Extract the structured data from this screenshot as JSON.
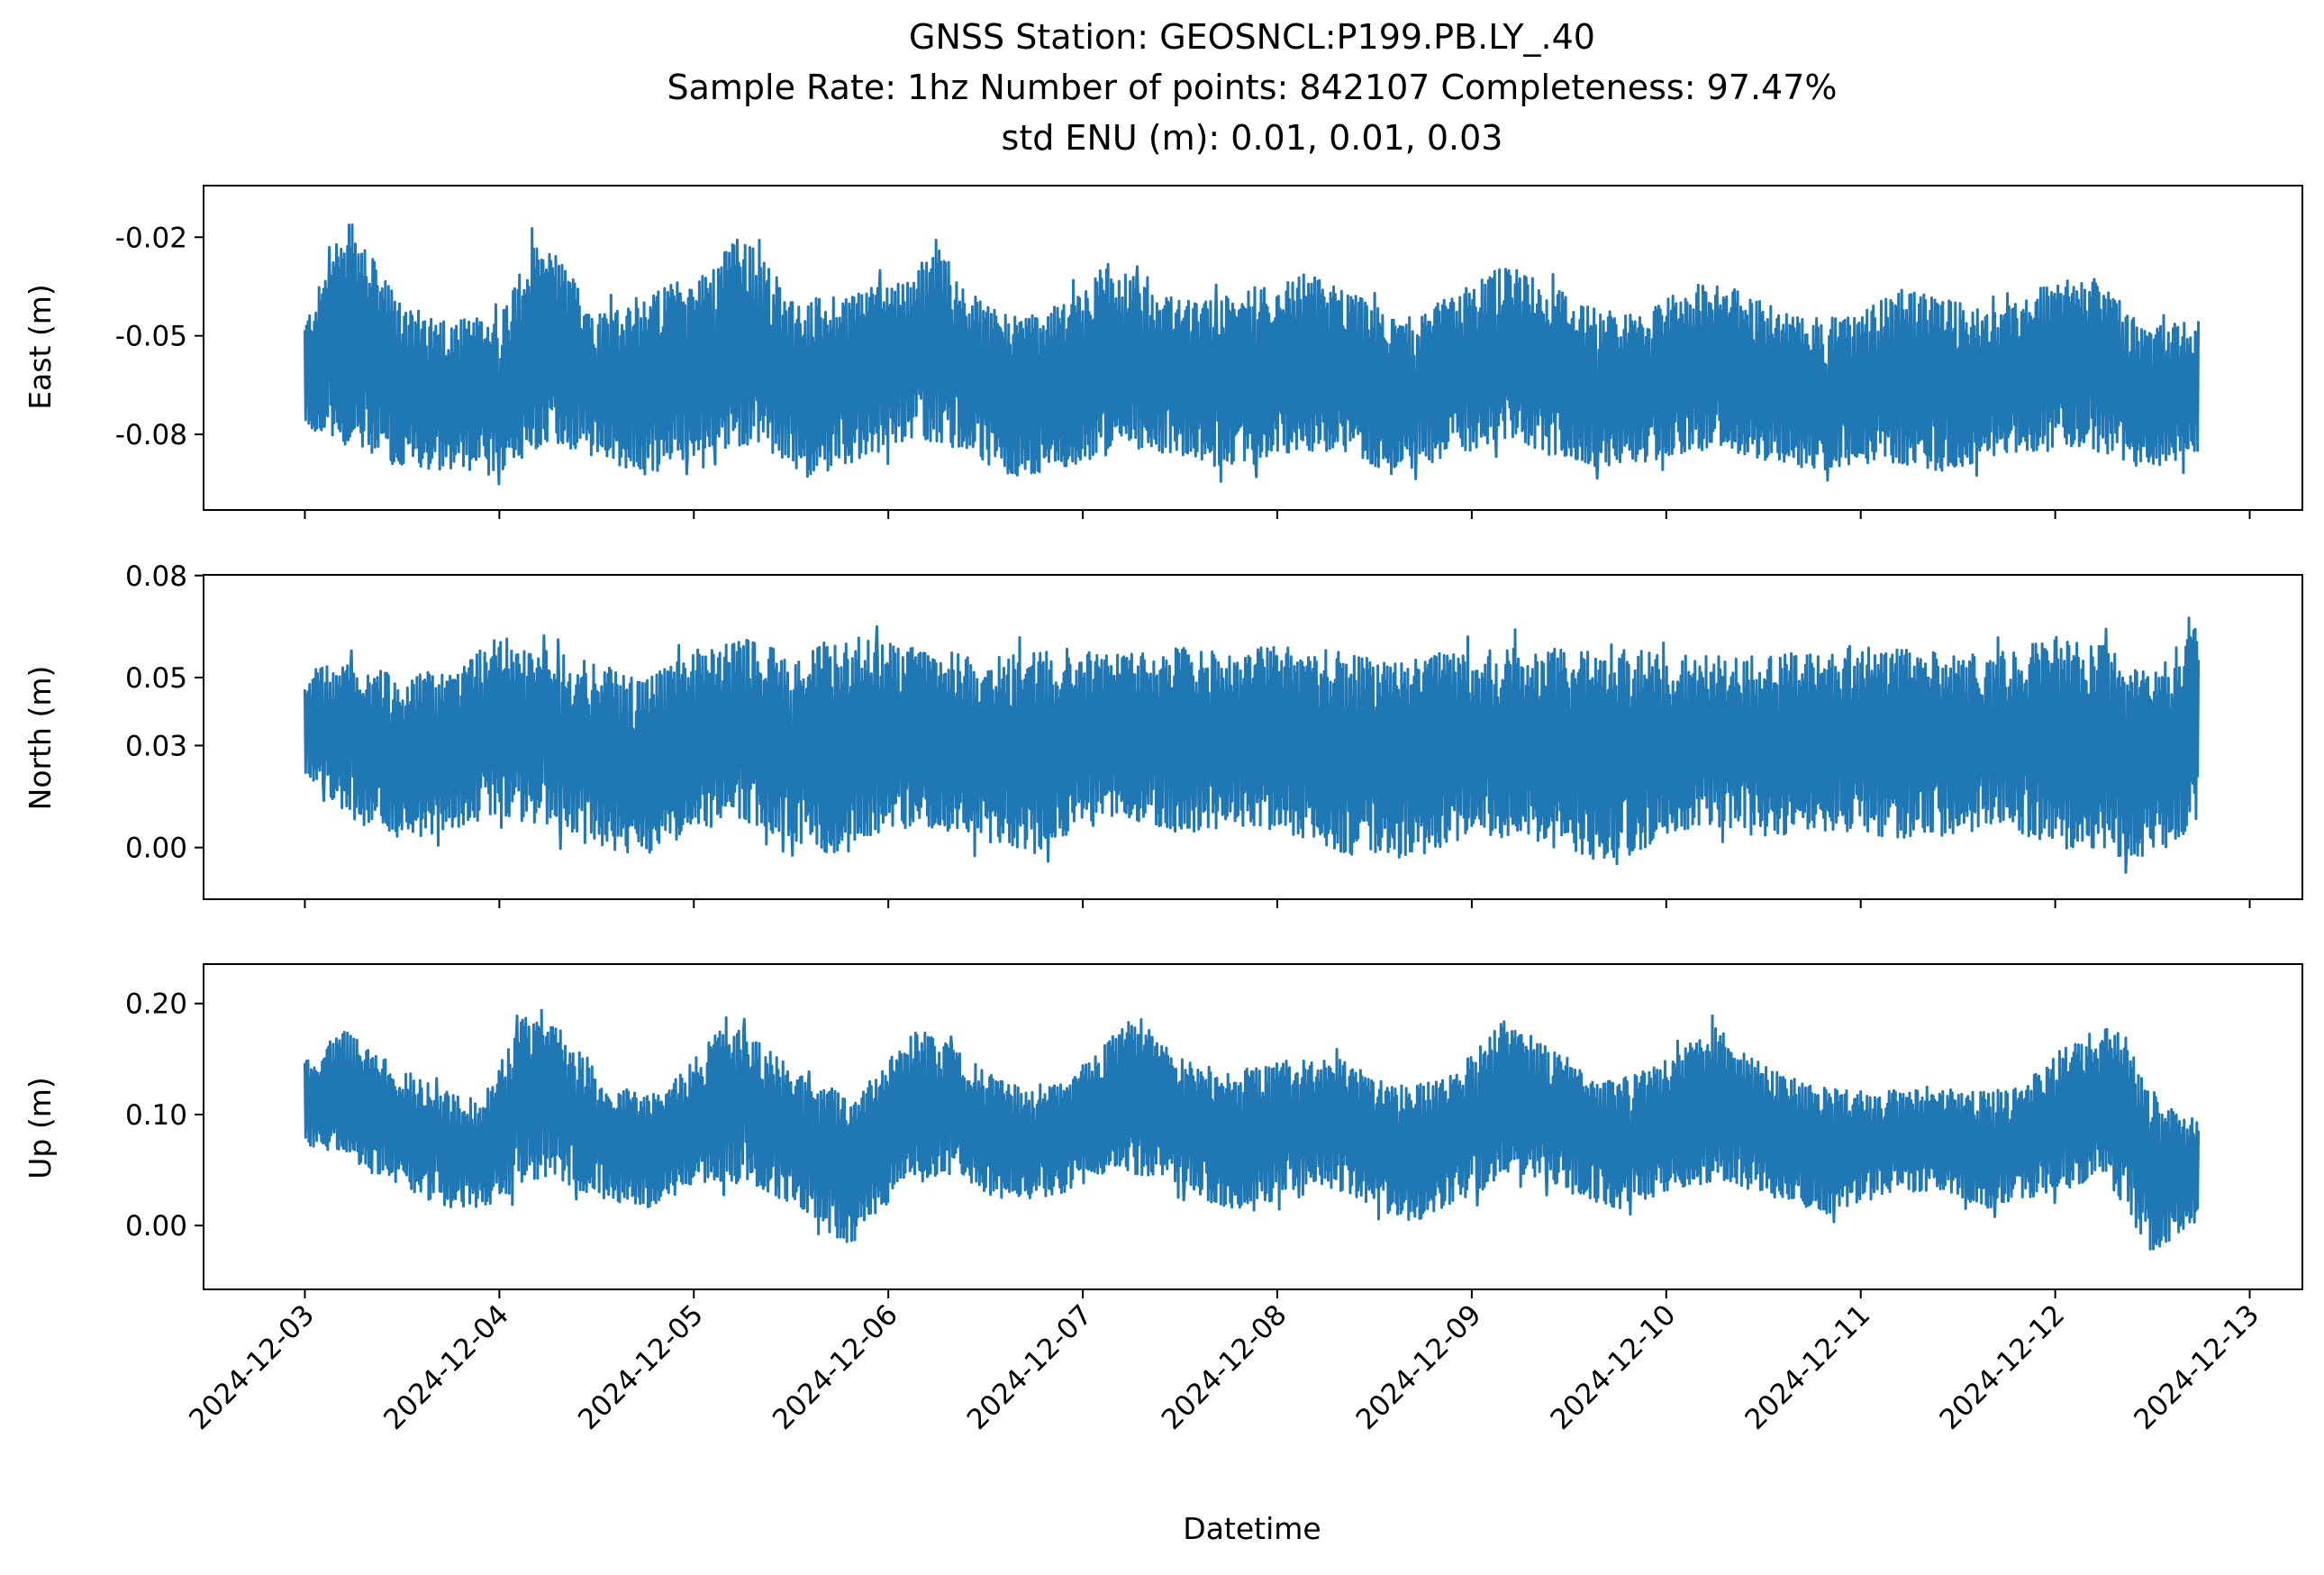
{
  "figure": {
    "title_lines": [
      "GNSS Station: GEOSNCL:P199.PB.LY_.40",
      "Sample Rate: 1hz   Number of points: 842107    Completeness:  97.47%",
      "std ENU (m):  0.01, 0.01, 0.03"
    ],
    "xlabel": "Datetime"
  },
  "chart_data": [
    {
      "type": "line",
      "name": "east",
      "ylabel": "East (m)",
      "color": "#1f77b4",
      "xlim": [
        "2024-12-02T11:30",
        "2024-12-13T06:30"
      ],
      "ylim": [
        -0.103,
        -0.0043
      ],
      "yticks": [
        -0.08,
        -0.05,
        -0.02
      ],
      "ytick_labels": [
        "-0.08",
        "-0.05",
        "-0.02"
      ],
      "x_data_range": [
        "2024-12-03T00:00",
        "2024-12-12T17:40"
      ],
      "y_data_range": [
        -0.098,
        -0.01
      ],
      "envelope_upper": [
        [
          "2024-12-03T00:00",
          -0.046
        ],
        [
          "2024-12-03T04:00",
          -0.021
        ],
        [
          "2024-12-03T07:00",
          -0.021
        ],
        [
          "2024-12-03T12:00",
          -0.041
        ],
        [
          "2024-12-03T18:00",
          -0.045
        ],
        [
          "2024-12-04T00:00",
          -0.044
        ],
        [
          "2024-12-04T04:00",
          -0.022
        ],
        [
          "2024-12-04T07:00",
          -0.025
        ],
        [
          "2024-12-04T12:00",
          -0.043
        ],
        [
          "2024-12-04T18:00",
          -0.037
        ],
        [
          "2024-12-05T02:00",
          -0.03
        ],
        [
          "2024-12-05T05:00",
          -0.02
        ],
        [
          "2024-12-05T07:00",
          -0.022
        ],
        [
          "2024-12-05T13:00",
          -0.04
        ],
        [
          "2024-12-05T19:00",
          -0.036
        ],
        [
          "2024-12-06T03:00",
          -0.032
        ],
        [
          "2024-12-06T06:00",
          -0.02
        ],
        [
          "2024-12-06T09:00",
          -0.035
        ],
        [
          "2024-12-06T15:00",
          -0.044
        ],
        [
          "2024-12-06T21:00",
          -0.041
        ],
        [
          "2024-12-07T04:00",
          -0.026
        ],
        [
          "2024-12-07T08:00",
          -0.036
        ],
        [
          "2024-12-07T14:00",
          -0.04
        ],
        [
          "2024-12-07T20:00",
          -0.036
        ],
        [
          "2024-12-08T03:00",
          -0.031
        ],
        [
          "2024-12-08T08:00",
          -0.034
        ],
        [
          "2024-12-08T14:00",
          -0.044
        ],
        [
          "2024-12-08T20:00",
          -0.04
        ],
        [
          "2024-12-09T04:00",
          -0.028
        ],
        [
          "2024-12-09T09:00",
          -0.034
        ],
        [
          "2024-12-09T15:00",
          -0.041
        ],
        [
          "2024-12-09T21:00",
          -0.044
        ],
        [
          "2024-12-10T05:00",
          -0.031
        ],
        [
          "2024-12-10T10:00",
          -0.038
        ],
        [
          "2024-12-10T16:00",
          -0.043
        ],
        [
          "2024-12-10T22:00",
          -0.045
        ],
        [
          "2024-12-11T05:00",
          -0.036
        ],
        [
          "2024-12-11T11:00",
          -0.038
        ],
        [
          "2024-12-11T17:00",
          -0.042
        ],
        [
          "2024-12-12T00:00",
          -0.033
        ],
        [
          "2024-12-12T06:00",
          -0.032
        ],
        [
          "2024-12-12T11:00",
          -0.048
        ],
        [
          "2024-12-12T17:40",
          -0.045
        ]
      ],
      "envelope_lower": [
        [
          "2024-12-03T00:00",
          -0.078
        ],
        [
          "2024-12-03T06:00",
          -0.085
        ],
        [
          "2024-12-03T12:00",
          -0.09
        ],
        [
          "2024-12-03T18:00",
          -0.091
        ],
        [
          "2024-12-03T23:00",
          -0.093
        ],
        [
          "2024-12-04T06:00",
          -0.082
        ],
        [
          "2024-12-04T12:00",
          -0.088
        ],
        [
          "2024-12-04T18:00",
          -0.093
        ],
        [
          "2024-12-05T02:00",
          -0.085
        ],
        [
          "2024-12-05T08:00",
          -0.083
        ],
        [
          "2024-12-05T14:00",
          -0.093
        ],
        [
          "2024-12-05T20:00",
          -0.089
        ],
        [
          "2024-12-06T04:00",
          -0.081
        ],
        [
          "2024-12-06T10:00",
          -0.086
        ],
        [
          "2024-12-06T16:00",
          -0.094
        ],
        [
          "2024-12-06T22:00",
          -0.091
        ],
        [
          "2024-12-07T06:00",
          -0.084
        ],
        [
          "2024-12-07T12:00",
          -0.087
        ],
        [
          "2024-12-07T18:00",
          -0.091
        ],
        [
          "2024-12-08T02:00",
          -0.086
        ],
        [
          "2024-12-08T08:00",
          -0.085
        ],
        [
          "2024-12-08T14:00",
          -0.092
        ],
        [
          "2024-12-08T20:00",
          -0.088
        ],
        [
          "2024-12-09T04:00",
          -0.082
        ],
        [
          "2024-12-09T10:00",
          -0.087
        ],
        [
          "2024-12-09T16:00",
          -0.09
        ],
        [
          "2024-12-09T22:00",
          -0.088
        ],
        [
          "2024-12-10T06:00",
          -0.084
        ],
        [
          "2024-12-10T12:00",
          -0.088
        ],
        [
          "2024-12-10T18:00",
          -0.091
        ],
        [
          "2024-12-11T02:00",
          -0.089
        ],
        [
          "2024-12-11T08:00",
          -0.092
        ],
        [
          "2024-12-11T14:00",
          -0.089
        ],
        [
          "2024-12-11T20:00",
          -0.086
        ],
        [
          "2024-12-12T04:00",
          -0.084
        ],
        [
          "2024-12-12T10:00",
          -0.09
        ],
        [
          "2024-12-12T17:40",
          -0.088
        ]
      ]
    },
    {
      "type": "line",
      "name": "north",
      "ylabel": "North (m)",
      "color": "#1f77b4",
      "xlim": [
        "2024-12-02T11:30",
        "2024-12-13T06:30"
      ],
      "ylim": [
        -0.0152,
        0.0802
      ],
      "yticks": [
        0.0,
        0.03,
        0.05,
        0.08
      ],
      "ytick_labels": [
        "0.00",
        "0.03",
        "0.05",
        "0.08"
      ],
      "x_data_range": [
        "2024-12-03T00:00",
        "2024-12-12T17:40"
      ],
      "y_data_range": [
        -0.0116,
        0.0765
      ],
      "envelope_upper": [
        [
          "2024-12-03T00:00",
          0.052
        ],
        [
          "2024-12-03T05:00",
          0.055
        ],
        [
          "2024-12-03T12:00",
          0.05
        ],
        [
          "2024-12-03T18:00",
          0.053
        ],
        [
          "2024-12-04T00:00",
          0.062
        ],
        [
          "2024-12-04T06:00",
          0.058
        ],
        [
          "2024-12-04T12:00",
          0.054
        ],
        [
          "2024-12-04T18:00",
          0.05
        ],
        [
          "2024-12-05T00:00",
          0.058
        ],
        [
          "2024-12-05T06:00",
          0.062
        ],
        [
          "2024-12-05T12:00",
          0.057
        ],
        [
          "2024-12-05T18:00",
          0.063
        ],
        [
          "2024-12-06T00:00",
          0.06
        ],
        [
          "2024-12-06T06:00",
          0.058
        ],
        [
          "2024-12-06T12:00",
          0.056
        ],
        [
          "2024-12-06T18:00",
          0.058
        ],
        [
          "2024-12-07T00:00",
          0.059
        ],
        [
          "2024-12-07T06:00",
          0.057
        ],
        [
          "2024-12-07T12:00",
          0.059
        ],
        [
          "2024-12-07T18:00",
          0.057
        ],
        [
          "2024-12-08T00:00",
          0.06
        ],
        [
          "2024-12-08T06:00",
          0.058
        ],
        [
          "2024-12-08T12:00",
          0.056
        ],
        [
          "2024-12-08T18:00",
          0.057
        ],
        [
          "2024-12-09T00:00",
          0.058
        ],
        [
          "2024-12-09T06:00",
          0.06
        ],
        [
          "2024-12-09T12:00",
          0.058
        ],
        [
          "2024-12-09T18:00",
          0.06
        ],
        [
          "2024-12-10T00:00",
          0.056
        ],
        [
          "2024-12-10T06:00",
          0.057
        ],
        [
          "2024-12-10T12:00",
          0.056
        ],
        [
          "2024-12-10T18:00",
          0.058
        ],
        [
          "2024-12-11T00:00",
          0.06
        ],
        [
          "2024-12-11T06:00",
          0.058
        ],
        [
          "2024-12-11T12:00",
          0.057
        ],
        [
          "2024-12-11T18:00",
          0.058
        ],
        [
          "2024-12-12T00:00",
          0.062
        ],
        [
          "2024-12-12T06:00",
          0.06
        ],
        [
          "2024-12-12T12:00",
          0.052
        ],
        [
          "2024-12-12T17:40",
          0.066
        ]
      ],
      "envelope_lower": [
        [
          "2024-12-03T00:00",
          0.022
        ],
        [
          "2024-12-03T06:00",
          0.008
        ],
        [
          "2024-12-03T12:00",
          0.002
        ],
        [
          "2024-12-03T18:00",
          0.005
        ],
        [
          "2024-12-04T00:00",
          0.01
        ],
        [
          "2024-12-04T06:00",
          0.005
        ],
        [
          "2024-12-04T12:00",
          0.0
        ],
        [
          "2024-12-04T18:00",
          -0.003
        ],
        [
          "2024-12-05T00:00",
          0.005
        ],
        [
          "2024-12-05T06:00",
          0.008
        ],
        [
          "2024-12-05T12:00",
          0.002
        ],
        [
          "2024-12-05T18:00",
          -0.004
        ],
        [
          "2024-12-06T00:00",
          0.006
        ],
        [
          "2024-12-06T06:00",
          0.004
        ],
        [
          "2024-12-06T12:00",
          0.001
        ],
        [
          "2024-12-06T18:00",
          -0.002
        ],
        [
          "2024-12-07T00:00",
          0.006
        ],
        [
          "2024-12-07T06:00",
          0.008
        ],
        [
          "2024-12-07T12:00",
          0.004
        ],
        [
          "2024-12-07T18:00",
          0.006
        ],
        [
          "2024-12-08T00:00",
          0.005
        ],
        [
          "2024-12-08T06:00",
          0.0
        ],
        [
          "2024-12-08T12:00",
          -0.004
        ],
        [
          "2024-12-08T18:00",
          -0.002
        ],
        [
          "2024-12-09T00:00",
          0.004
        ],
        [
          "2024-12-09T06:00",
          0.002
        ],
        [
          "2024-12-09T12:00",
          -0.002
        ],
        [
          "2024-12-09T18:00",
          -0.005
        ],
        [
          "2024-12-10T00:00",
          0.004
        ],
        [
          "2024-12-10T06:00",
          0.006
        ],
        [
          "2024-12-10T12:00",
          0.003
        ],
        [
          "2024-12-10T18:00",
          0.005
        ],
        [
          "2024-12-11T00:00",
          0.004
        ],
        [
          "2024-12-11T06:00",
          0.002
        ],
        [
          "2024-12-11T12:00",
          0.004
        ],
        [
          "2024-12-11T18:00",
          0.006
        ],
        [
          "2024-12-12T00:00",
          0.0
        ],
        [
          "2024-12-12T06:00",
          -0.002
        ],
        [
          "2024-12-12T12:00",
          -0.004
        ],
        [
          "2024-12-12T17:40",
          0.006
        ]
      ]
    },
    {
      "type": "line",
      "name": "up",
      "ylabel": "Up (m)",
      "color": "#1f77b4",
      "xlim": [
        "2024-12-02T11:30",
        "2024-12-13T06:30"
      ],
      "ylim": [
        -0.0575,
        0.2355
      ],
      "yticks": [
        0.0,
        0.1,
        0.2
      ],
      "ytick_labels": [
        "0.00",
        "0.10",
        "0.20"
      ],
      "x_data_range": [
        "2024-12-03T00:00",
        "2024-12-12T17:40"
      ],
      "y_data_range": [
        -0.044,
        0.225
      ],
      "envelope_upper": [
        [
          "2024-12-03T00:00",
          0.15
        ],
        [
          "2024-12-03T05:00",
          0.175
        ],
        [
          "2024-12-03T10:00",
          0.15
        ],
        [
          "2024-12-03T16:00",
          0.125
        ],
        [
          "2024-12-03T22:00",
          0.115
        ],
        [
          "2024-12-04T03:00",
          0.19
        ],
        [
          "2024-12-04T08:00",
          0.175
        ],
        [
          "2024-12-04T14:00",
          0.125
        ],
        [
          "2024-12-04T20:00",
          0.118
        ],
        [
          "2024-12-05T04:00",
          0.188
        ],
        [
          "2024-12-05T09:00",
          0.16
        ],
        [
          "2024-12-05T15:00",
          0.125
        ],
        [
          "2024-12-05T21:00",
          0.128
        ],
        [
          "2024-12-06T04:00",
          0.18
        ],
        [
          "2024-12-06T10:00",
          0.15
        ],
        [
          "2024-12-06T16:00",
          0.125
        ],
        [
          "2024-12-06T22:00",
          0.13
        ],
        [
          "2024-12-07T06:00",
          0.195
        ],
        [
          "2024-12-07T12:00",
          0.15
        ],
        [
          "2024-12-07T18:00",
          0.138
        ],
        [
          "2024-12-08T02:00",
          0.15
        ],
        [
          "2024-12-08T08:00",
          0.15
        ],
        [
          "2024-12-08T14:00",
          0.125
        ],
        [
          "2024-12-08T20:00",
          0.13
        ],
        [
          "2024-12-09T04:00",
          0.185
        ],
        [
          "2024-12-09T10:00",
          0.16
        ],
        [
          "2024-12-09T16:00",
          0.13
        ],
        [
          "2024-12-09T22:00",
          0.14
        ],
        [
          "2024-12-10T06:00",
          0.18
        ],
        [
          "2024-12-10T12:00",
          0.145
        ],
        [
          "2024-12-10T18:00",
          0.125
        ],
        [
          "2024-12-11T02:00",
          0.12
        ],
        [
          "2024-12-11T08:00",
          0.125
        ],
        [
          "2024-12-11T14:00",
          0.12
        ],
        [
          "2024-12-11T20:00",
          0.125
        ],
        [
          "2024-12-12T02:00",
          0.17
        ],
        [
          "2024-12-12T08:00",
          0.18
        ],
        [
          "2024-12-12T13:00",
          0.11
        ],
        [
          "2024-12-12T17:40",
          0.095
        ]
      ],
      "envelope_lower": [
        [
          "2024-12-03T00:00",
          0.07
        ],
        [
          "2024-12-03T06:00",
          0.055
        ],
        [
          "2024-12-03T12:00",
          0.035
        ],
        [
          "2024-12-03T18:00",
          0.01
        ],
        [
          "2024-12-03T23:00",
          0.02
        ],
        [
          "2024-12-04T06:00",
          0.045
        ],
        [
          "2024-12-04T12:00",
          0.025
        ],
        [
          "2024-12-04T18:00",
          0.015
        ],
        [
          "2024-12-05T02:00",
          0.04
        ],
        [
          "2024-12-05T08:00",
          0.035
        ],
        [
          "2024-12-05T14:00",
          0.01
        ],
        [
          "2024-12-05T19:00",
          -0.02
        ],
        [
          "2024-12-06T02:00",
          0.035
        ],
        [
          "2024-12-06T08:00",
          0.045
        ],
        [
          "2024-12-06T14:00",
          0.02
        ],
        [
          "2024-12-06T20:00",
          0.025
        ],
        [
          "2024-12-07T04:00",
          0.05
        ],
        [
          "2024-12-07T10:00",
          0.04
        ],
        [
          "2024-12-07T16:00",
          0.02
        ],
        [
          "2024-12-07T21:00",
          0.01
        ],
        [
          "2024-12-08T04:00",
          0.04
        ],
        [
          "2024-12-08T10:00",
          0.025
        ],
        [
          "2024-12-08T16:00",
          0.0
        ],
        [
          "2024-12-08T22:00",
          0.02
        ],
        [
          "2024-12-09T06:00",
          0.045
        ],
        [
          "2024-12-09T12:00",
          0.03
        ],
        [
          "2024-12-09T18:00",
          0.015
        ],
        [
          "2024-12-10T02:00",
          0.035
        ],
        [
          "2024-12-10T08:00",
          0.04
        ],
        [
          "2024-12-10T14:00",
          0.02
        ],
        [
          "2024-12-10T20:00",
          0.01
        ],
        [
          "2024-12-11T04:00",
          0.03
        ],
        [
          "2024-12-11T10:00",
          0.03
        ],
        [
          "2024-12-11T16:00",
          0.015
        ],
        [
          "2024-12-11T22:00",
          0.025
        ],
        [
          "2024-12-12T06:00",
          0.045
        ],
        [
          "2024-12-12T12:00",
          -0.025
        ],
        [
          "2024-12-12T17:40",
          0.005
        ]
      ]
    }
  ],
  "x_axis": {
    "ticks": [
      "2024-12-03",
      "2024-12-04",
      "2024-12-05",
      "2024-12-06",
      "2024-12-07",
      "2024-12-08",
      "2024-12-09",
      "2024-12-10",
      "2024-12-11",
      "2024-12-12",
      "2024-12-13"
    ]
  }
}
